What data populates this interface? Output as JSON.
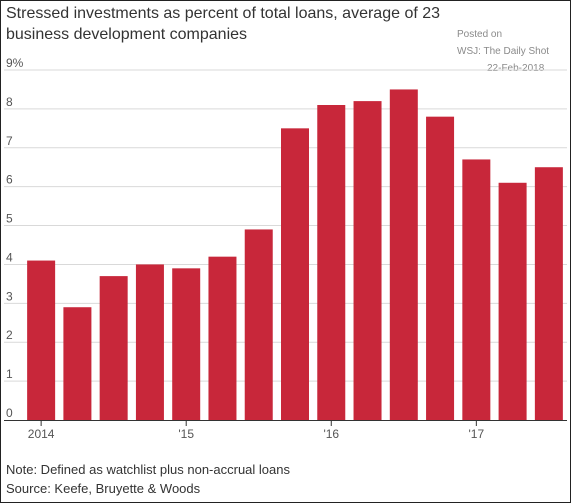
{
  "chart_data": {
    "type": "bar",
    "title": "Stressed investments as percent of total loans, average of 23 business development companies",
    "xlabel": "",
    "ylabel": "",
    "y_unit": "%",
    "ylim": [
      0,
      9
    ],
    "yticks": [
      0,
      1,
      2,
      3,
      4,
      5,
      6,
      7,
      8,
      9
    ],
    "ytick_labels": [
      "0",
      "1",
      "2",
      "3",
      "4",
      "5",
      "6",
      "7",
      "8",
      "9%"
    ],
    "categories": [
      "2014 Q1",
      "2014 Q2",
      "2014 Q3",
      "2014 Q4",
      "2015 Q1",
      "2015 Q2",
      "2015 Q3",
      "2015 Q4",
      "2016 Q1",
      "2016 Q2",
      "2016 Q3",
      "2016 Q4",
      "2017 Q1",
      "2017 Q2",
      "2017 Q3"
    ],
    "values": [
      4.1,
      2.9,
      3.7,
      4.0,
      3.9,
      4.2,
      4.9,
      7.5,
      8.1,
      8.2,
      8.5,
      7.8,
      6.7,
      6.1,
      6.5
    ],
    "xtick_labels": [
      {
        "label": "2014",
        "index": 0
      },
      {
        "label": "'15",
        "index": 4
      },
      {
        "label": "'16",
        "index": 8
      },
      {
        "label": "'17",
        "index": 12
      }
    ],
    "bar_color": "#c8273a",
    "grid": true,
    "legend": "none"
  },
  "stamp": {
    "line1": "Posted on",
    "line2": "WSJ: The Daily Shot",
    "line3": "22-Feb-2018"
  },
  "note": "Note: Defined as watchlist plus non-accrual loans",
  "source": "Source: Keefe, Bruyette & Woods"
}
